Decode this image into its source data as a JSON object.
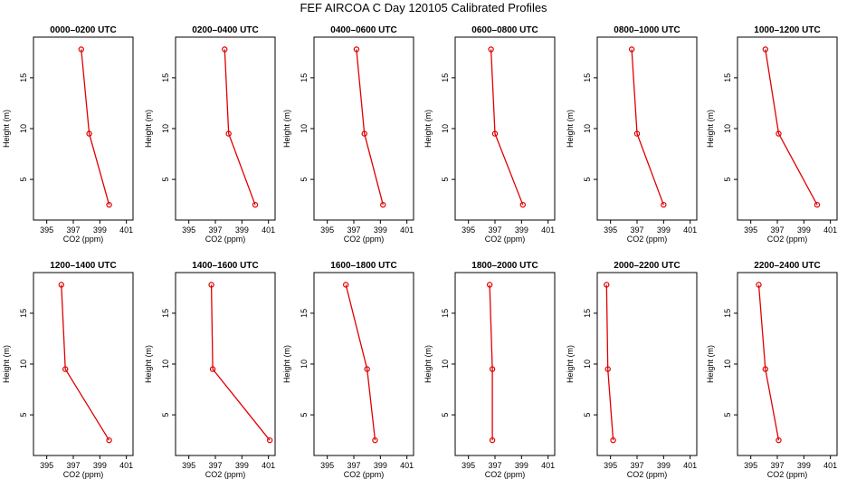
{
  "figure": {
    "title": "FEF  AIRCOA C  Day 120105  Calibrated Profiles"
  },
  "chart_data": [
    {
      "type": "line",
      "title": "0000–0200 UTC",
      "xlabel": "CO2 (ppm)",
      "ylabel": "Height (m)",
      "xlim": [
        394,
        401.5
      ],
      "ylim": [
        1,
        19
      ],
      "xticks": [
        395,
        397,
        399,
        401
      ],
      "yticks": [
        5,
        10,
        15
      ],
      "series": [
        {
          "x": [
            399.7,
            398.2,
            397.6
          ],
          "y": [
            2.5,
            9.5,
            17.8
          ]
        }
      ]
    },
    {
      "type": "line",
      "title": "0200–0400 UTC",
      "xlabel": "CO2 (ppm)",
      "ylabel": "Height (m)",
      "xlim": [
        394,
        401.5
      ],
      "ylim": [
        1,
        19
      ],
      "xticks": [
        395,
        397,
        399,
        401
      ],
      "yticks": [
        5,
        10,
        15
      ],
      "series": [
        {
          "x": [
            400.0,
            398.0,
            397.7
          ],
          "y": [
            2.5,
            9.5,
            17.8
          ]
        }
      ]
    },
    {
      "type": "line",
      "title": "0400–0600 UTC",
      "xlabel": "CO2 (ppm)",
      "ylabel": "Height (m)",
      "xlim": [
        394,
        401.5
      ],
      "ylim": [
        1,
        19
      ],
      "xticks": [
        395,
        397,
        399,
        401
      ],
      "yticks": [
        5,
        10,
        15
      ],
      "series": [
        {
          "x": [
            399.2,
            397.8,
            397.2
          ],
          "y": [
            2.5,
            9.5,
            17.8
          ]
        }
      ]
    },
    {
      "type": "line",
      "title": "0600–0800 UTC",
      "xlabel": "CO2 (ppm)",
      "ylabel": "Height (m)",
      "xlim": [
        394,
        401.5
      ],
      "ylim": [
        1,
        19
      ],
      "xticks": [
        395,
        397,
        399,
        401
      ],
      "yticks": [
        5,
        10,
        15
      ],
      "series": [
        {
          "x": [
            399.1,
            397.0,
            396.7
          ],
          "y": [
            2.5,
            9.5,
            17.8
          ]
        }
      ]
    },
    {
      "type": "line",
      "title": "0800–1000 UTC",
      "xlabel": "CO2 (ppm)",
      "ylabel": "Height (m)",
      "xlim": [
        394,
        401.5
      ],
      "ylim": [
        1,
        19
      ],
      "xticks": [
        395,
        397,
        399,
        401
      ],
      "yticks": [
        5,
        10,
        15
      ],
      "series": [
        {
          "x": [
            399.0,
            397.0,
            396.6
          ],
          "y": [
            2.5,
            9.5,
            17.8
          ]
        }
      ]
    },
    {
      "type": "line",
      "title": "1000–1200 UTC",
      "xlabel": "CO2 (ppm)",
      "ylabel": "Height (m)",
      "xlim": [
        394,
        401.5
      ],
      "ylim": [
        1,
        19
      ],
      "xticks": [
        395,
        397,
        399,
        401
      ],
      "yticks": [
        5,
        10,
        15
      ],
      "series": [
        {
          "x": [
            400.0,
            397.1,
            396.1
          ],
          "y": [
            2.5,
            9.5,
            17.8
          ]
        }
      ]
    },
    {
      "type": "line",
      "title": "1200–1400 UTC",
      "xlabel": "CO2 (ppm)",
      "ylabel": "Height (m)",
      "xlim": [
        394,
        401.5
      ],
      "ylim": [
        1,
        19
      ],
      "xticks": [
        395,
        397,
        399,
        401
      ],
      "yticks": [
        5,
        10,
        15
      ],
      "series": [
        {
          "x": [
            399.7,
            396.4,
            396.1
          ],
          "y": [
            2.5,
            9.5,
            17.8
          ]
        }
      ]
    },
    {
      "type": "line",
      "title": "1400–1600 UTC",
      "xlabel": "CO2 (ppm)",
      "ylabel": "Height (m)",
      "xlim": [
        394,
        401.5
      ],
      "ylim": [
        1,
        19
      ],
      "xticks": [
        395,
        397,
        399,
        401
      ],
      "yticks": [
        5,
        10,
        15
      ],
      "series": [
        {
          "x": [
            401.1,
            396.8,
            396.7
          ],
          "y": [
            2.5,
            9.5,
            17.8
          ]
        }
      ]
    },
    {
      "type": "line",
      "title": "1600–1800 UTC",
      "xlabel": "CO2 (ppm)",
      "ylabel": "Height (m)",
      "xlim": [
        394,
        401.5
      ],
      "ylim": [
        1,
        19
      ],
      "xticks": [
        395,
        397,
        399,
        401
      ],
      "yticks": [
        5,
        10,
        15
      ],
      "series": [
        {
          "x": [
            398.6,
            398.0,
            396.4
          ],
          "y": [
            2.5,
            9.5,
            17.8
          ]
        }
      ]
    },
    {
      "type": "line",
      "title": "1800–2000 UTC",
      "xlabel": "CO2 (ppm)",
      "ylabel": "Height (m)",
      "xlim": [
        394,
        401.5
      ],
      "ylim": [
        1,
        19
      ],
      "xticks": [
        395,
        397,
        399,
        401
      ],
      "yticks": [
        5,
        10,
        15
      ],
      "series": [
        {
          "x": [
            396.8,
            396.8,
            396.6
          ],
          "y": [
            2.5,
            9.5,
            17.8
          ]
        }
      ]
    },
    {
      "type": "line",
      "title": "2000–2200 UTC",
      "xlabel": "CO2 (ppm)",
      "ylabel": "Height (m)",
      "xlim": [
        394,
        401.5
      ],
      "ylim": [
        1,
        19
      ],
      "xticks": [
        395,
        397,
        399,
        401
      ],
      "yticks": [
        5,
        10,
        15
      ],
      "series": [
        {
          "x": [
            395.2,
            394.8,
            394.7
          ],
          "y": [
            2.5,
            9.5,
            17.8
          ]
        }
      ]
    },
    {
      "type": "line",
      "title": "2200–2400 UTC",
      "xlabel": "CO2 (ppm)",
      "ylabel": "Height (m)",
      "xlim": [
        394,
        401.5
      ],
      "ylim": [
        1,
        19
      ],
      "xticks": [
        395,
        397,
        399,
        401
      ],
      "yticks": [
        5,
        10,
        15
      ],
      "series": [
        {
          "x": [
            397.1,
            396.1,
            395.6
          ],
          "y": [
            2.5,
            9.5,
            17.8
          ]
        }
      ]
    }
  ],
  "colors": {
    "series": "#e00000",
    "axis": "#000000"
  }
}
